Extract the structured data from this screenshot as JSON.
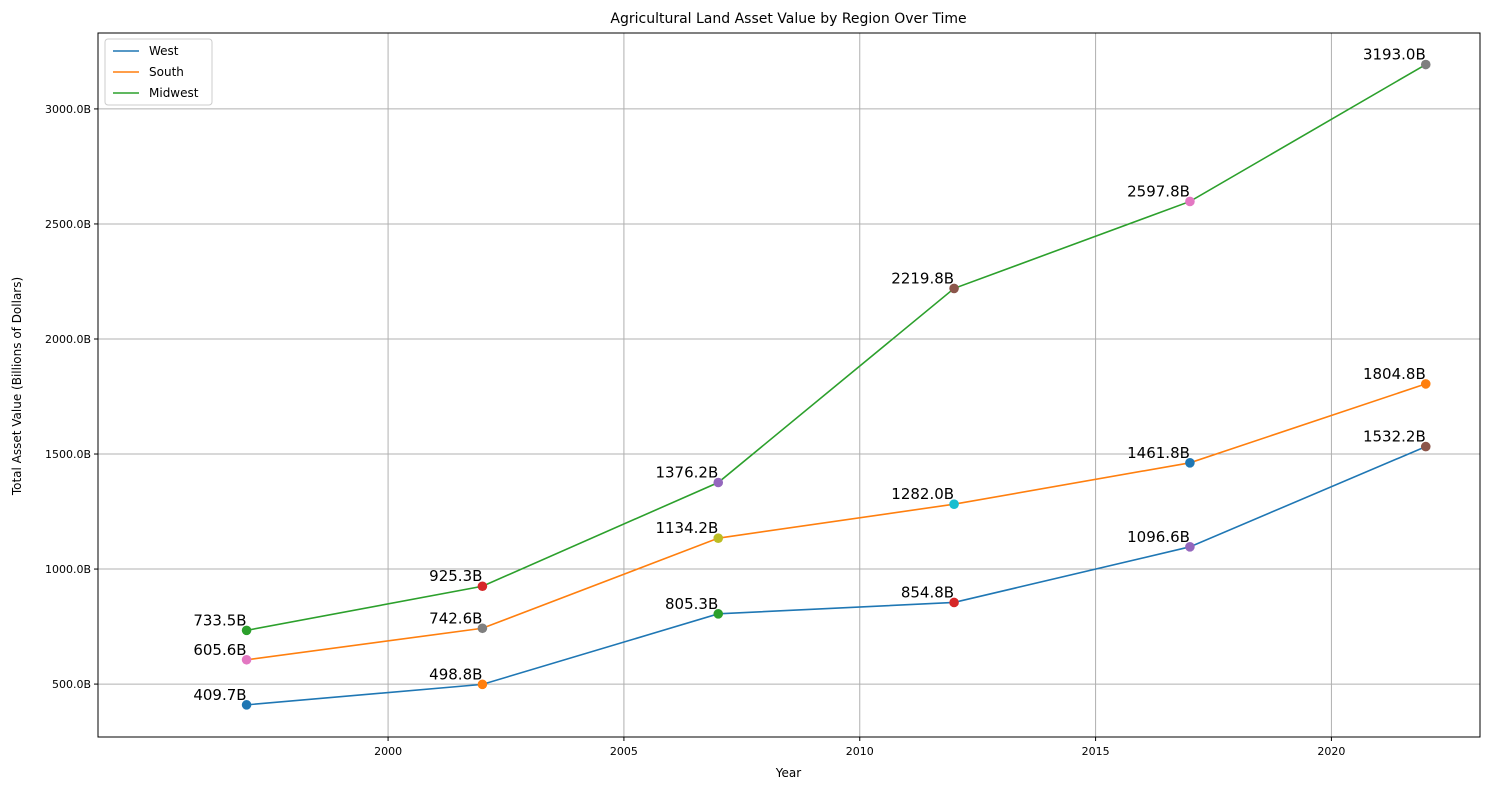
{
  "chart_data": {
    "type": "line",
    "title": "Agricultural Land Asset Value by Region Over Time",
    "xlabel": "Year",
    "ylabel": "Total Asset Value (Billions of Dollars)",
    "x": [
      1997,
      2002,
      2007,
      2012,
      2017,
      2022
    ],
    "xlim": [
      1993.85,
      2023.15
    ],
    "ylim": [
      270,
      3330
    ],
    "xticks": [
      2000,
      2005,
      2010,
      2015,
      2020
    ],
    "yticks": [
      500,
      1000,
      1500,
      2000,
      2500,
      3000
    ],
    "ytick_labels": [
      "500.0B",
      "1000.0B",
      "1500.0B",
      "2000.0B",
      "2500.0B",
      "3000.0B"
    ],
    "grid": true,
    "legend_position": "top-left",
    "series": [
      {
        "name": "West",
        "color": "#1f77b4",
        "values": [
          409.7,
          498.8,
          805.3,
          854.8,
          1096.6,
          1532.2
        ],
        "labels": [
          "409.7B",
          "498.8B",
          "805.3B",
          "854.8B",
          "1096.6B",
          "1532.2B"
        ],
        "marker_colors": [
          "#1f77b4",
          "#ff7f0e",
          "#2ca02c",
          "#d62728",
          "#9467bd",
          "#8c564b"
        ]
      },
      {
        "name": "South",
        "color": "#ff7f0e",
        "values": [
          605.6,
          742.6,
          1134.2,
          1282.0,
          1461.8,
          1804.8
        ],
        "labels": [
          "605.6B",
          "742.6B",
          "1134.2B",
          "1282.0B",
          "1461.8B",
          "1804.8B"
        ],
        "marker_colors": [
          "#e377c2",
          "#7f7f7f",
          "#bcbd22",
          "#17becf",
          "#1f77b4",
          "#ff7f0e"
        ]
      },
      {
        "name": "Midwest",
        "color": "#2ca02c",
        "values": [
          733.5,
          925.3,
          1376.2,
          2219.8,
          2597.8,
          3193.0
        ],
        "labels": [
          "733.5B",
          "925.3B",
          "1376.2B",
          "2219.8B",
          "2597.8B",
          "3193.0B"
        ],
        "marker_colors": [
          "#2ca02c",
          "#d62728",
          "#9467bd",
          "#8c564b",
          "#e377c2",
          "#7f7f7f"
        ]
      }
    ]
  }
}
